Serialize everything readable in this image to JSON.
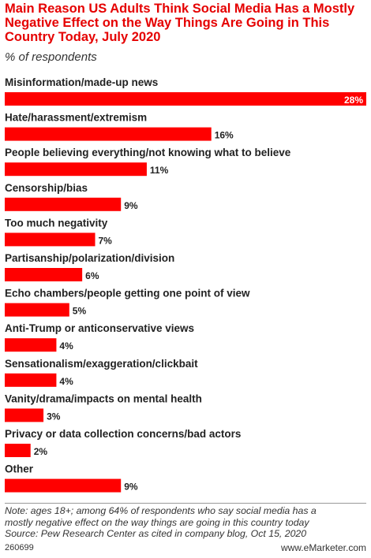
{
  "title": "Main Reason US Adults Think Social Media Has a Mostly Negative Effect on the Way Things Are Going in This Country Today, July 2020",
  "subtitle": "% of respondents",
  "chart_data": {
    "type": "bar",
    "orientation": "horizontal",
    "categories": [
      "Misinformation/made-up news",
      "Hate/harassment/extremism",
      "People believing everything/not knowing what to believe",
      "Censorship/bias",
      "Too much negativity",
      "Partisanship/polarization/division",
      "Echo chambers/people getting one point of view",
      "Anti-Trump or anticonservative views",
      "Sensationalism/exaggeration/clickbait",
      "Vanity/drama/impacts on mental health",
      "Privacy or data collection concerns/bad actors",
      "Other"
    ],
    "values": [
      28,
      16,
      11,
      9,
      7,
      6,
      5,
      4,
      4,
      3,
      2,
      9
    ],
    "value_suffix": "%",
    "bar_color": "#ff0000",
    "xlim": [
      0,
      28
    ],
    "grid": false,
    "legend": "none"
  },
  "notes": [
    "Note: ages 18+; among 64% of respondents who say social media has a",
    "mostly negative effect on the way things are going in this country today",
    "Source: Pew Research Center as cited in company blog, Oct 15, 2020"
  ],
  "chart_id": "260699",
  "brand": "www.eMarketer.com"
}
